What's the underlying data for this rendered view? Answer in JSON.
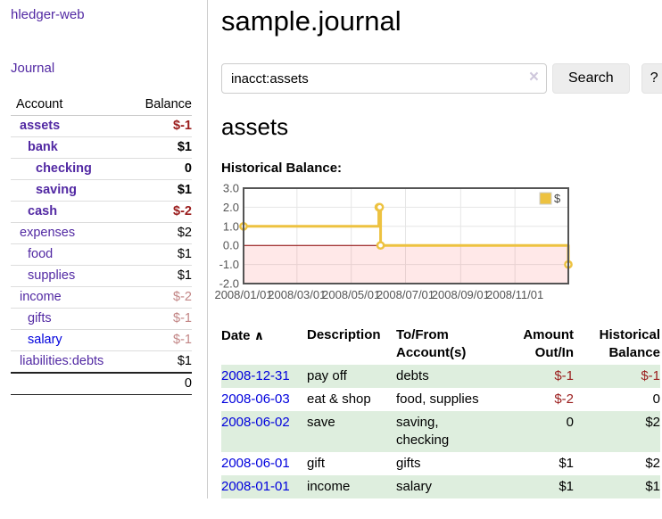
{
  "sidebar": {
    "brand": "hledger-web",
    "nav": {
      "journal": "Journal"
    },
    "accounts": {
      "col_account": "Account",
      "col_balance": "Balance",
      "rows": [
        {
          "name": "assets",
          "balance": "$-1"
        },
        {
          "name": "bank",
          "balance": "$1"
        },
        {
          "name": "checking",
          "balance": "0"
        },
        {
          "name": "saving",
          "balance": "$1"
        },
        {
          "name": "cash",
          "balance": "$-2"
        },
        {
          "name": "expenses",
          "balance": "$2"
        },
        {
          "name": "food",
          "balance": "$1"
        },
        {
          "name": "supplies",
          "balance": "$1"
        },
        {
          "name": "income",
          "balance": "$-2"
        },
        {
          "name": "gifts",
          "balance": "$-1"
        },
        {
          "name": "salary",
          "balance": "$-1"
        },
        {
          "name": "liabilities:debts",
          "balance": "$1"
        }
      ],
      "total": "0"
    }
  },
  "main": {
    "title": "sample.journal",
    "search": {
      "query": "inacct:assets",
      "clear_icon": "×",
      "search_label": "Search",
      "help_label": "?"
    },
    "account_heading": "assets",
    "chart_label": "Historical Balance:"
  },
  "chart_data": {
    "type": "line",
    "title": "Historical Balance:",
    "series": [
      {
        "name": "$",
        "color": "#edc240",
        "steps": true,
        "points": [
          [
            "2008-01-01",
            1
          ],
          [
            "2008-06-01",
            2
          ],
          [
            "2008-06-02",
            2
          ],
          [
            "2008-06-03",
            0
          ],
          [
            "2008-12-31",
            -1
          ]
        ]
      }
    ],
    "x_range": [
      "2008-01-01",
      "2008-12-31"
    ],
    "x_ticks": [
      "2008/01/01",
      "2008/03/01",
      "2008/05/01",
      "2008/07/01",
      "2008/09/01",
      "2008/11/01"
    ],
    "y_ticks": [
      "3.0",
      "2.0",
      "1.0",
      "0.0",
      "-1.0",
      "-2.0"
    ],
    "ylim": [
      -2.0,
      3.0
    ],
    "grid": true,
    "legend_position": "top-right",
    "colors": {
      "grid": "#e6e6e6",
      "border": "#545454",
      "tick_text": "#545454",
      "negative_region": "rgba(255,0,0,0.09)",
      "zero_line": "#8b0000",
      "legend_box_border": "#cccccc"
    }
  },
  "register": {
    "headers": {
      "date": "Date",
      "sort_arrow": "∧",
      "description": "Description",
      "tofrom": "To/From Account(s)",
      "amount": "Amount Out/In",
      "balance": "Historical Balance"
    },
    "rows": [
      {
        "date": "2008-12-31",
        "description": "pay off",
        "accounts": "debts",
        "amount": "$-1",
        "balance": "$-1"
      },
      {
        "date": "2008-06-03",
        "description": "eat & shop",
        "accounts": "food, supplies",
        "amount": "$-2",
        "balance": "0"
      },
      {
        "date": "2008-06-02",
        "description": "save",
        "accounts": "saving, checking",
        "amount": "0",
        "balance": "$2"
      },
      {
        "date": "2008-06-01",
        "description": "gift",
        "accounts": "gifts",
        "amount": "$1",
        "balance": "$2"
      },
      {
        "date": "2008-01-01",
        "description": "income",
        "accounts": "salary",
        "amount": "$1",
        "balance": "$1"
      }
    ]
  },
  "colors": {
    "link_purple": "#5229a3",
    "link_blue": "#0000dd",
    "negative_strong": "#9a1c1c",
    "negative_dim": "#c28585",
    "row_green": "#deeede",
    "series_gold": "#edc240"
  }
}
